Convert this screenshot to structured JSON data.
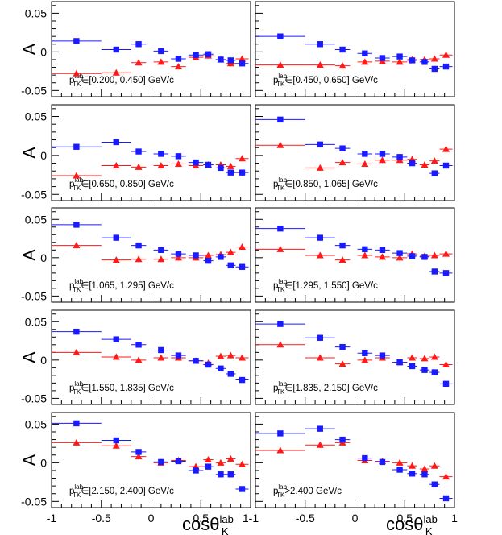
{
  "chart_data": {
    "type": "scatter",
    "layout": "5x2 grid of panels sharing axes",
    "xlabel": "cosθ",
    "xlabel_sup": "lab",
    "xlabel_sub": "K",
    "ylabel": "A",
    "xlim": [
      -1,
      1
    ],
    "ylim": [
      -0.058,
      0.065
    ],
    "xticks": [
      "-1",
      "-0.5",
      "0",
      "0.5",
      "1"
    ],
    "yticks": [
      "-0.05",
      "0",
      "0.05"
    ],
    "grid": false,
    "colors": {
      "blue": "#1a1aff",
      "red": "#ff1a1a"
    },
    "bins": {
      "centers": [
        -0.75,
        -0.35,
        -0.125,
        0.1,
        0.275,
        0.45,
        0.575,
        0.7,
        0.8,
        0.915
      ],
      "half_widths": [
        0.25,
        0.15,
        0.075,
        0.075,
        0.075,
        0.075,
        0.05,
        0.05,
        0.05,
        0.065
      ]
    },
    "panels": [
      {
        "label_prefix": "p",
        "label_sup": "lab",
        "label_sub": "TK",
        "label_text": "∈[0.200, 0.450] GeV/c",
        "blue": [
          0.014,
          0.003,
          0.01,
          0.001,
          -0.009,
          -0.004,
          -0.003,
          -0.01,
          -0.011,
          -0.015
        ],
        "red": [
          -0.028,
          -0.027,
          -0.014,
          -0.013,
          -0.019,
          -0.007,
          -0.005,
          -0.01,
          -0.015,
          -0.009
        ]
      },
      {
        "label_prefix": "p",
        "label_sup": "lab",
        "label_sub": "TK",
        "label_text": "∈[0.450, 0.650] GeV/c",
        "blue": [
          0.02,
          0.01,
          0.003,
          -0.002,
          -0.008,
          -0.006,
          -0.011,
          -0.013,
          -0.022,
          -0.019
        ],
        "red": [
          -0.017,
          -0.017,
          -0.018,
          -0.013,
          -0.012,
          -0.013,
          -0.01,
          -0.01,
          -0.009,
          -0.004
        ]
      },
      {
        "label_prefix": "p",
        "label_sup": "lab",
        "label_sub": "TK",
        "label_text": "∈[0.650, 0.850] GeV/c",
        "blue": [
          0.011,
          0.017,
          0.005,
          0.002,
          -0.001,
          -0.009,
          -0.012,
          -0.016,
          -0.022,
          -0.022
        ],
        "red": [
          -0.026,
          -0.013,
          -0.015,
          -0.013,
          -0.011,
          -0.013,
          -0.012,
          -0.012,
          -0.014,
          -0.004
        ]
      },
      {
        "label_prefix": "p",
        "label_sup": "lab",
        "label_sub": "TK",
        "label_text": "∈[0.850, 1.065] GeV/c",
        "blue": [
          0.046,
          0.014,
          0.009,
          0.002,
          0.002,
          -0.002,
          -0.01,
          -0.023,
          -0.013
        ],
        "blue_bins": [
          0,
          1,
          2,
          3,
          4,
          5,
          6,
          8,
          9
        ],
        "red": [
          0.013,
          -0.016,
          -0.009,
          -0.011,
          -0.006,
          -0.006,
          -0.005,
          -0.012,
          -0.007,
          0.008
        ]
      },
      {
        "label_prefix": "p",
        "label_sup": "lab",
        "label_sub": "TK",
        "label_text": "∈[1.065, 1.295] GeV/c",
        "blue": [
          0.043,
          0.026,
          0.016,
          0.01,
          0.005,
          0.003,
          -0.004,
          0.001,
          -0.01,
          -0.012
        ],
        "red": [
          0.016,
          -0.003,
          -0.002,
          -0.002,
          0.0,
          0.0,
          0.003,
          0.004,
          0.007,
          0.014
        ]
      },
      {
        "label_prefix": "p",
        "label_sup": "lab",
        "label_sub": "TK",
        "label_text": "∈[1.295, 1.550] GeV/c",
        "blue": [
          0.038,
          0.026,
          0.016,
          0.011,
          0.01,
          0.006,
          0.002,
          0.001,
          -0.018,
          -0.02
        ],
        "red": [
          0.011,
          0.003,
          -0.003,
          0.003,
          0.001,
          0.0,
          0.005,
          0.002,
          0.003,
          0.005
        ]
      },
      {
        "label_prefix": "p",
        "label_sup": "lab",
        "label_sub": "TK",
        "label_text": "∈[1.550, 1.835] GeV/c",
        "blue": [
          0.037,
          0.027,
          0.02,
          0.013,
          0.006,
          -0.001,
          -0.006,
          -0.011,
          -0.018,
          -0.026
        ],
        "red": [
          0.01,
          0.004,
          0.0,
          0.003,
          0.003,
          -0.001,
          -0.004,
          0.005,
          0.006,
          0.003
        ]
      },
      {
        "label_prefix": "p",
        "label_sup": "lab",
        "label_sub": "TK",
        "label_text": "∈[1.835, 2.150] GeV/c",
        "blue": [
          0.047,
          0.029,
          0.017,
          0.009,
          0.006,
          -0.003,
          -0.008,
          -0.013,
          -0.016,
          -0.031
        ],
        "red": [
          0.02,
          0.003,
          -0.005,
          0.0,
          0.003,
          -0.003,
          0.003,
          0.002,
          0.004,
          -0.006
        ]
      },
      {
        "label_prefix": "p",
        "label_sup": "lab",
        "label_sub": "TK",
        "label_text": "∈[2.150, 2.400] GeV/c",
        "blue": [
          0.051,
          0.029,
          0.014,
          0.001,
          0.002,
          -0.01,
          -0.005,
          -0.015,
          -0.015,
          -0.034
        ],
        "red": [
          0.026,
          0.022,
          0.008,
          0.0,
          0.003,
          -0.005,
          0.004,
          0.0,
          0.005,
          -0.002
        ]
      },
      {
        "label_prefix": "p",
        "label_sup": "lab",
        "label_sub": "TK",
        "label_text": ">2.400 GeV/c",
        "blue": [
          0.038,
          0.044,
          0.03,
          0.006,
          0.001,
          -0.009,
          -0.014,
          -0.015,
          -0.028,
          -0.046
        ],
        "red": [
          0.016,
          0.023,
          0.026,
          0.003,
          0.002,
          0.0,
          -0.004,
          -0.008,
          -0.004,
          -0.018
        ]
      }
    ]
  }
}
